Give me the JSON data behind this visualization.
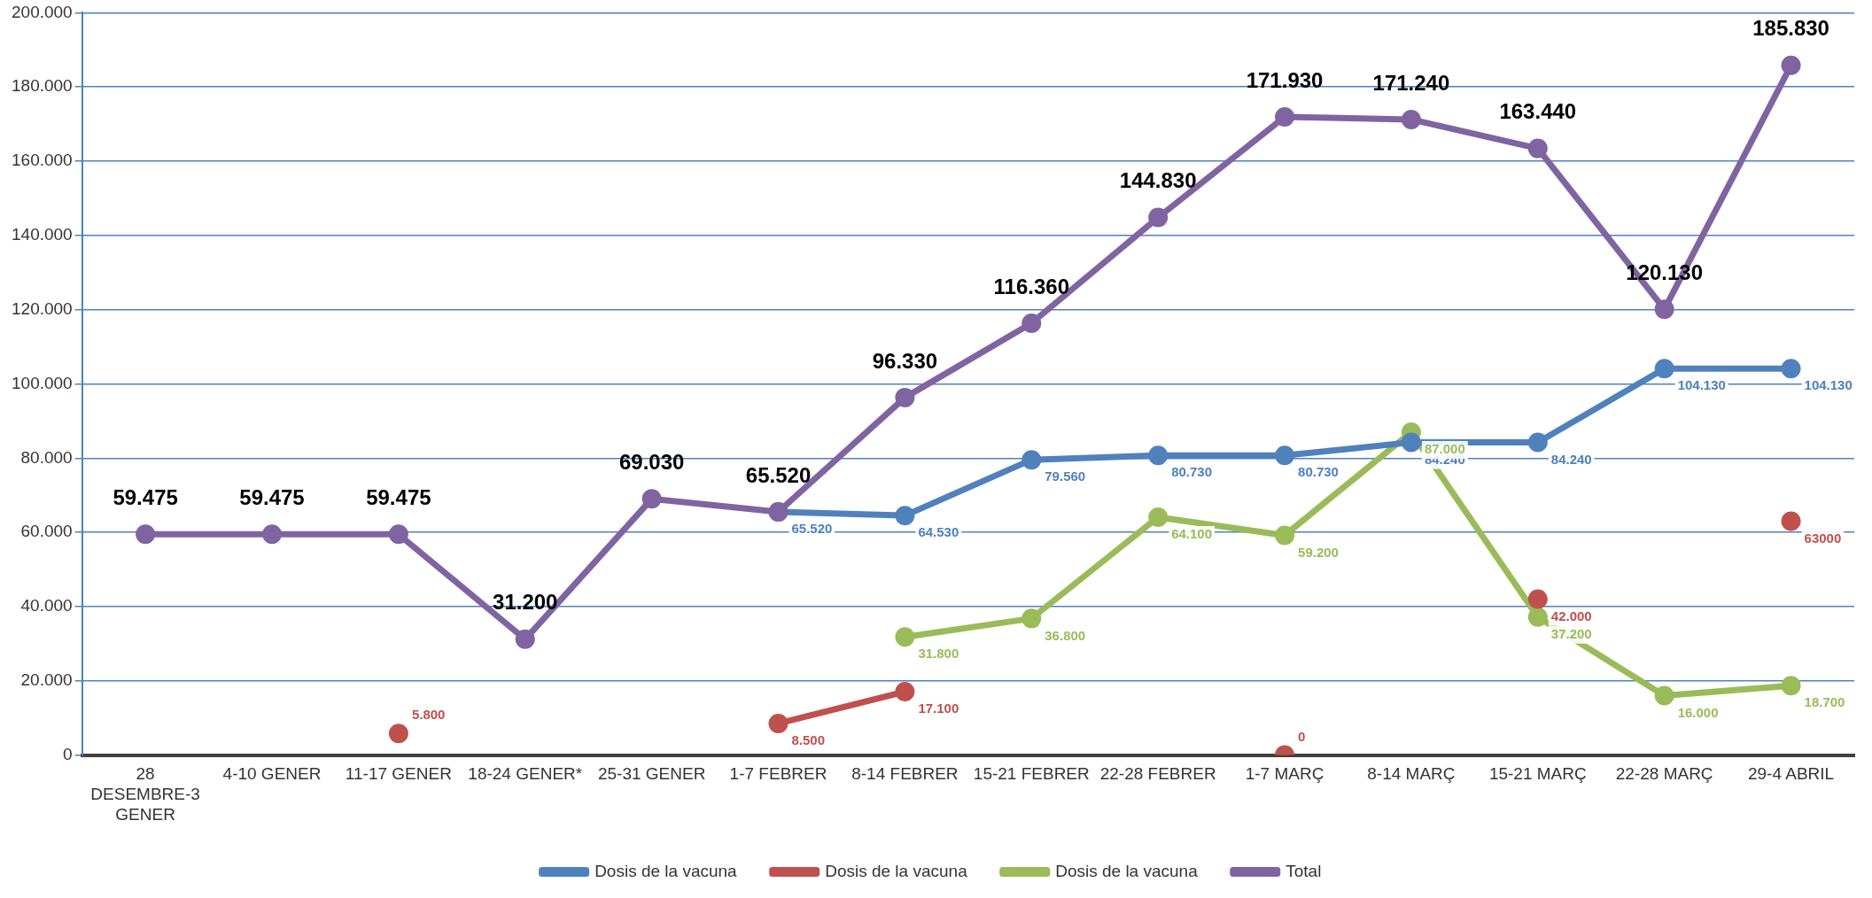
{
  "chart_data": {
    "type": "line",
    "categories": [
      "28 DESEMBRE-3 GENER",
      "4-10 GENER",
      "11-17 GENER",
      "18-24 GENER*",
      "25-31 GENER",
      "1-7 FEBRER",
      "8-14 FEBRER",
      "15-21 FEBRER",
      "22-28 FEBRER",
      "1-7 MARÇ",
      "8-14 MARÇ",
      "15-21 MARÇ",
      "22-28 MARÇ",
      "29-4 ABRIL"
    ],
    "series": [
      {
        "name": "Dosis de la vacuna",
        "color": "#4f81bd",
        "values": [
          null,
          null,
          null,
          null,
          null,
          65520,
          64530,
          79560,
          80730,
          80730,
          84240,
          84240,
          104130,
          104130
        ],
        "value_labels": [
          null,
          null,
          null,
          null,
          null,
          "65.520",
          "64.530",
          "79.560",
          "80.730",
          "80.730",
          "84.240",
          "84.240",
          "104.130",
          "104.130"
        ]
      },
      {
        "name": "Dosis de la vacuna",
        "color": "#c0504d",
        "values": [
          null,
          null,
          5800,
          null,
          null,
          8500,
          17100,
          null,
          null,
          0,
          null,
          42000,
          null,
          63000
        ],
        "value_labels": [
          null,
          null,
          "5.800",
          null,
          null,
          "8.500",
          "17.100",
          null,
          null,
          "0",
          null,
          "42.000",
          null,
          "63000"
        ]
      },
      {
        "name": "Dosis de la vacuna",
        "color": "#9bbb59",
        "values": [
          null,
          null,
          null,
          null,
          null,
          null,
          31800,
          36800,
          64100,
          59200,
          87000,
          37200,
          16000,
          18700
        ],
        "value_labels": [
          null,
          null,
          null,
          null,
          null,
          null,
          "31.800",
          "36.800",
          "64.100",
          "59.200",
          "87.000",
          "37.200",
          "16.000",
          "18.700"
        ]
      },
      {
        "name": "Total",
        "color": "#8064a2",
        "values": [
          59475,
          59475,
          59475,
          31200,
          69030,
          65520,
          96330,
          116360,
          144830,
          171930,
          171240,
          163440,
          120130,
          185830
        ],
        "value_labels": [
          "59.475",
          "59.475",
          "59.475",
          "31.200",
          "69.030",
          "65.520",
          "96.330",
          "116.360",
          "144.830",
          "171.930",
          "171.240",
          "163.440",
          "120.130",
          "185.830"
        ]
      }
    ],
    "ylim": [
      0,
      200000
    ],
    "yticks": [
      0,
      {
        "value": 20000,
        "label": "20.000"
      },
      {
        "value": 40000,
        "label": "40.000"
      },
      {
        "value": 60000,
        "label": "60.000"
      },
      {
        "value": 80000,
        "label": "80.000"
      },
      {
        "value": 100000,
        "label": "100.000"
      },
      {
        "value": 120000,
        "label": "120.000"
      },
      {
        "value": 140000,
        "label": "140.000"
      },
      {
        "value": 160000,
        "label": "160.000"
      },
      {
        "value": 180000,
        "label": "180.000"
      },
      {
        "value": 200000,
        "label": "200.000"
      }
    ],
    "grid": "y",
    "legend": "bottom",
    "marker": "circle",
    "line_style": "solid"
  }
}
